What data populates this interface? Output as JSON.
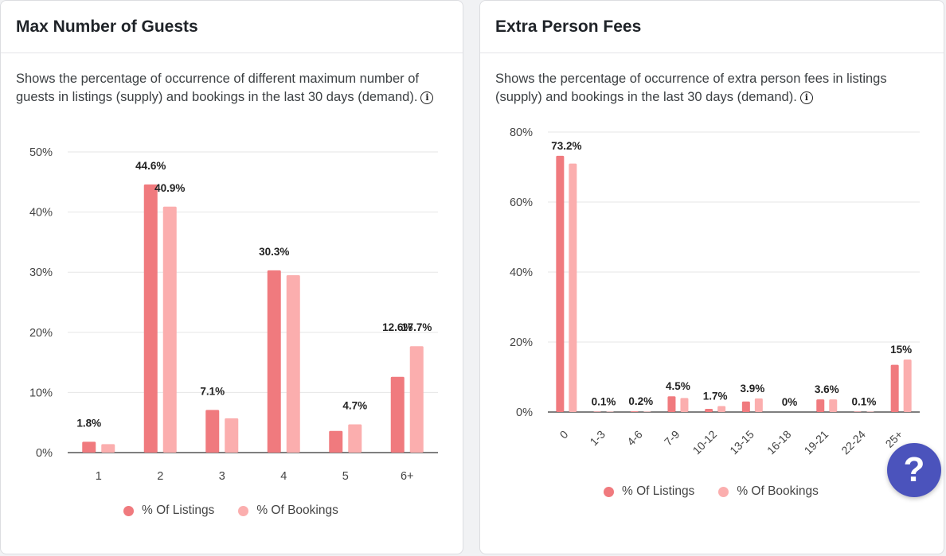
{
  "colors": {
    "listings": "#f07a7e",
    "bookings": "#fbaeae",
    "grid": "#e6e6e6",
    "axis": "#333333",
    "help_button": "#4b53bc"
  },
  "left_card": {
    "title": "Max Number of Guests",
    "description": "Shows the percentage of occurrence of different maximum number of guests in listings (supply) and bookings in the last 30 days (demand).",
    "info_icon": "info-icon",
    "legend": [
      "% Of Listings",
      "% Of Bookings"
    ]
  },
  "right_card": {
    "title": "Extra Person Fees",
    "description": "Shows the percentage of occurrence of extra person fees in listings (supply) and bookings in the last 30 days (demand).",
    "info_icon": "info-icon",
    "legend": [
      "% Of Listings",
      "% Of Bookings"
    ]
  },
  "help_button": {
    "label": "?",
    "icon": "help-icon"
  },
  "chart_data": [
    {
      "type": "bar",
      "title": "Max Number of Guests",
      "categories": [
        "1",
        "2",
        "3",
        "4",
        "5",
        "6+"
      ],
      "series": [
        {
          "name": "% Of Listings",
          "values": [
            1.8,
            44.6,
            7.1,
            30.3,
            3.6,
            12.6
          ]
        },
        {
          "name": "% Of Bookings",
          "values": [
            1.4,
            40.9,
            5.7,
            29.5,
            4.7,
            17.7
          ]
        }
      ],
      "labels": [
        {
          "category": "1",
          "series": 0,
          "text": "1.8%"
        },
        {
          "category": "2",
          "series": 0,
          "text": "44.6%"
        },
        {
          "category": "2",
          "series": 1,
          "text": "40.9%"
        },
        {
          "category": "3",
          "series": 0,
          "text": "7.1%"
        },
        {
          "category": "4",
          "series": 0,
          "text": "30.3%"
        },
        {
          "category": "5",
          "series": 1,
          "text": "4.7%"
        },
        {
          "category": "6+",
          "series": 0,
          "text": "12.6%"
        },
        {
          "category": "6+",
          "series": 1,
          "text": "17.7%"
        }
      ],
      "yticks": [
        "0%",
        "10%",
        "20%",
        "30%",
        "40%",
        "50%"
      ],
      "ylim": [
        0,
        50
      ],
      "grid": true,
      "legend_position": "bottom"
    },
    {
      "type": "bar",
      "title": "Extra Person Fees",
      "categories": [
        "0",
        "1-3",
        "4-6",
        "7-9",
        "10-12",
        "13-15",
        "16-18",
        "19-21",
        "22-24",
        "25+"
      ],
      "series": [
        {
          "name": "% Of Listings",
          "values": [
            73.2,
            0.1,
            0.2,
            4.5,
            0.9,
            3.0,
            0,
            3.6,
            0.1,
            13.5
          ]
        },
        {
          "name": "% Of Bookings",
          "values": [
            71.0,
            0.1,
            0.1,
            4.0,
            1.7,
            3.9,
            0,
            3.6,
            0.1,
            15
          ]
        }
      ],
      "labels": [
        {
          "category": "0",
          "text": "73.2%"
        },
        {
          "category": "1-3",
          "text": "0.1%"
        },
        {
          "category": "4-6",
          "text": "0.2%"
        },
        {
          "category": "7-9",
          "text": "4.5%"
        },
        {
          "category": "10-12",
          "text": "1.7%"
        },
        {
          "category": "13-15",
          "text": "3.9%"
        },
        {
          "category": "16-18",
          "text": "0%"
        },
        {
          "category": "19-21",
          "text": "3.6%"
        },
        {
          "category": "22-24",
          "text": "0.1%"
        },
        {
          "category": "25+",
          "text": "15%"
        }
      ],
      "yticks": [
        "0%",
        "20%",
        "40%",
        "60%",
        "80%"
      ],
      "ylim": [
        0,
        80
      ],
      "grid": true,
      "legend_position": "bottom"
    }
  ]
}
